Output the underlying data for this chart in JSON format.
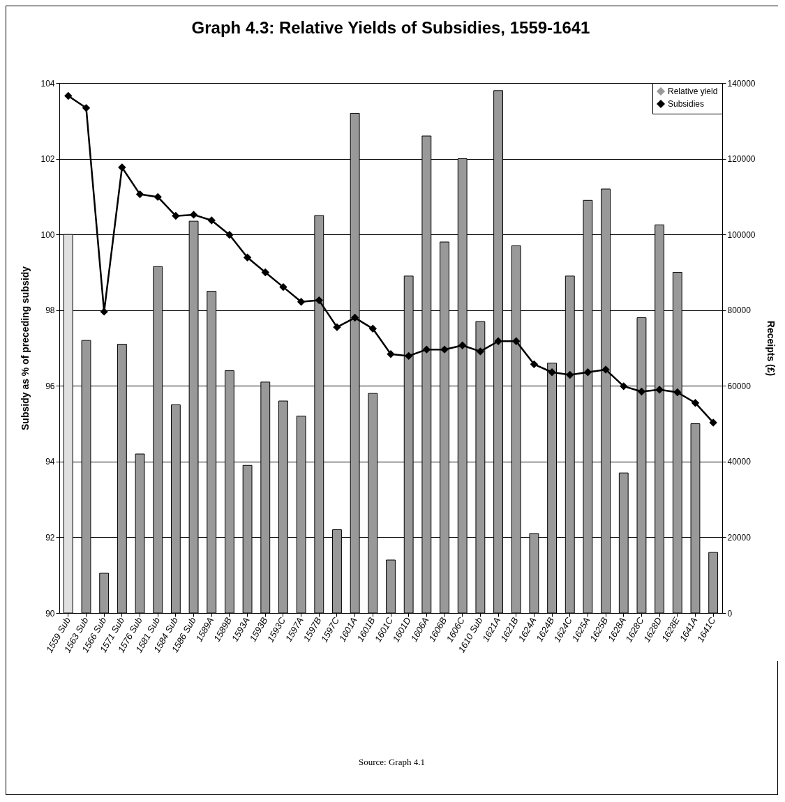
{
  "chart_data": {
    "type": "bar",
    "title": "Graph 4.3: Relative Yields of Subsidies, 1559-1641",
    "categories": [
      "1559 Sub",
      "1563 Sub",
      "1566 Sub",
      "1571 Sub",
      "1576 Sub",
      "1581 Sub",
      "1584 Sub",
      "1586 Sub",
      "1589A",
      "1589B",
      "1593A",
      "1593B",
      "1593C",
      "1597A",
      "1597B",
      "1597C",
      "1601A",
      "1601B",
      "1601C",
      "1601D",
      "1606A",
      "1606B",
      "1606C",
      "1610 Sub",
      "1621A",
      "1621B",
      "1624A",
      "1624B",
      "1624C",
      "1625A",
      "1625B",
      "1628A",
      "1628C",
      "1628D",
      "1628E",
      "1641A",
      "1641C"
    ],
    "series": [
      {
        "name": "Relative yield",
        "color": "#999999",
        "colors": [
          "#e0e0e0",
          "#999999",
          "#999999",
          "#999999",
          "#999999",
          "#999999",
          "#999999",
          "#999999",
          "#999999",
          "#999999",
          "#999999",
          "#999999",
          "#999999",
          "#999999",
          "#999999",
          "#999999",
          "#999999",
          "#999999",
          "#999999",
          "#999999",
          "#999999",
          "#999999",
          "#999999",
          "#999999",
          "#999999",
          "#999999",
          "#999999",
          "#999999",
          "#999999",
          "#999999",
          "#999999",
          "#999999",
          "#999999",
          "#999999",
          "#999999",
          "#999999",
          "#999999"
        ],
        "values": [
          100,
          97.2,
          91.05,
          97.1,
          94.2,
          99.15,
          95.5,
          100.35,
          98.5,
          96.4,
          93.9,
          96.1,
          95.6,
          95.2,
          100.5,
          92.2,
          103.2,
          95.8,
          91.4,
          98.9,
          102.6,
          99.8,
          102,
          97.7,
          103.8,
          99.7,
          92.1,
          96.6,
          98.9,
          100.9,
          101.2,
          93.7,
          97.8,
          100.25,
          99,
          95,
          91.6
        ]
      },
      {
        "name": "Subsidies",
        "type": "line",
        "axis": "y2",
        "color": "#000000",
        "values": [
          136600,
          133400,
          79600,
          117700,
          110600,
          109900,
          104900,
          105200,
          103700,
          99900,
          93900,
          90000,
          86100,
          82200,
          82600,
          75500,
          78000,
          75100,
          68400,
          67900,
          69600,
          69600,
          70700,
          69100,
          71800,
          71800,
          65700,
          63600,
          62900,
          63600,
          64300,
          59900,
          58500,
          59000,
          58300,
          55500,
          50300
        ]
      }
    ],
    "ylabel": "Subsidy as % of preceding subsidy",
    "y2label": "Receipts (£)",
    "ylim": [
      90,
      104
    ],
    "yticks": [
      90,
      92,
      94,
      96,
      98,
      100,
      102,
      104
    ],
    "y2lim": [
      0,
      140000
    ],
    "y2ticks": [
      0,
      20000,
      40000,
      60000,
      80000,
      100000,
      120000,
      140000
    ],
    "grid": "y",
    "legend": "top right",
    "marker": "diamond",
    "annotations": [
      "Source: Graph 4.1"
    ]
  }
}
